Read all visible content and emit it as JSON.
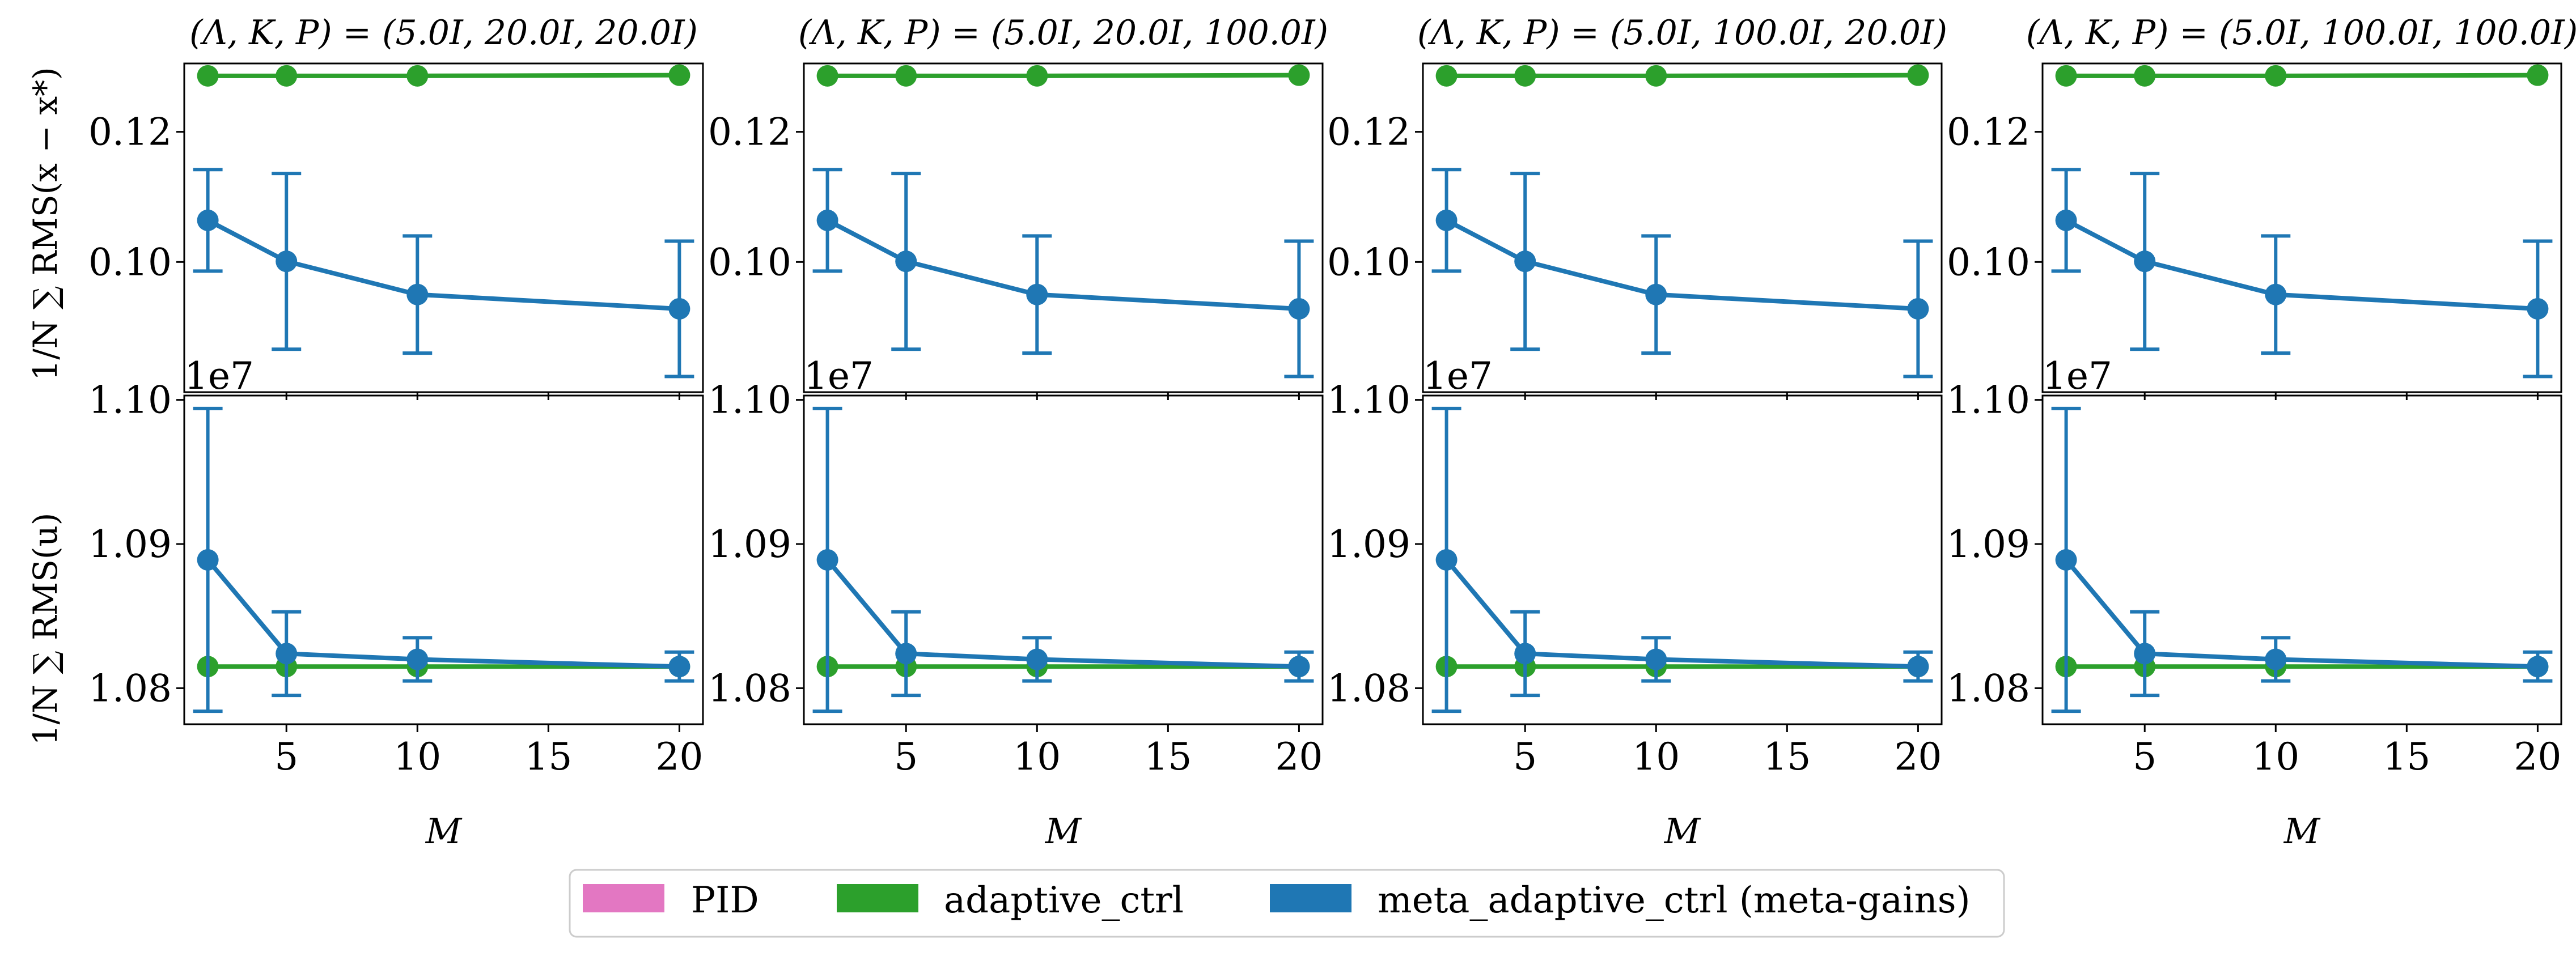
{
  "legend": {
    "placement": "bottom-center",
    "entries": [
      {
        "label": "PID",
        "color": "#e377c2"
      },
      {
        "label": "adaptive_ctrl",
        "color": "#2ca02c"
      },
      {
        "label": "meta_adaptive_ctrl (meta-gains)",
        "color": "#1f77b4"
      }
    ]
  },
  "colors": {
    "adaptive_ctrl": "#2ca02c",
    "meta_adaptive_ctrl": "#1f77b4"
  },
  "xlabel": "M",
  "ylabel_top": "1/N ∑ RMS(x − x*)",
  "ylabel_bottom": "1/N ∑ RMS(u)",
  "bottom_offset_label": "1e7",
  "top_yticks": [
    "0.10",
    "0.12"
  ],
  "bottom_yticks": [
    "1.08",
    "1.09",
    "1.10"
  ],
  "xticks": [
    "5",
    "10",
    "15",
    "20"
  ],
  "chart_data": {
    "type": "line",
    "grid": false,
    "x": [
      2,
      5,
      10,
      20
    ],
    "xlim": [
      1.1,
      20.9
    ],
    "columns": [
      {
        "title": "(Λ, K, P) = (5.0I, 20.0I, 20.0I)"
      },
      {
        "title": "(Λ, K, P) = (5.0I, 20.0I, 100.0I)"
      },
      {
        "title": "(Λ, K, P) = (5.0I, 100.0I, 20.0I)"
      },
      {
        "title": "(Λ, K, P) = (5.0I, 100.0I, 100.0I)"
      }
    ],
    "rows": [
      {
        "metric": "tracking_error",
        "ylim": [
          0.08,
          0.1305
        ],
        "series": [
          {
            "name": "adaptive_ctrl",
            "values": [
              0.1286,
              0.1286,
              0.1286,
              0.1287
            ],
            "errors": [
              0,
              0,
              0,
              0
            ]
          },
          {
            "name": "meta_adaptive_ctrl (meta-gains)",
            "values": [
              0.1064,
              0.1001,
              0.095,
              0.0928
            ],
            "errors": [
              0.0078,
              0.0135,
              0.009,
              0.0104
            ]
          }
        ]
      },
      {
        "metric": "control_effort",
        "scale": 10000000,
        "ylim": [
          1.0775,
          1.1003
        ],
        "series": [
          {
            "name": "adaptive_ctrl",
            "values": [
              1.0815,
              1.0815,
              1.0815,
              1.0815
            ],
            "errors": [
              0,
              0,
              0,
              0
            ]
          },
          {
            "name": "meta_adaptive_ctrl (meta-gains)",
            "values": [
              1.0889,
              1.0824,
              1.082,
              1.0815
            ],
            "errors": [
              0.0105,
              0.0029,
              0.0015,
              0.001
            ]
          }
        ]
      }
    ]
  }
}
